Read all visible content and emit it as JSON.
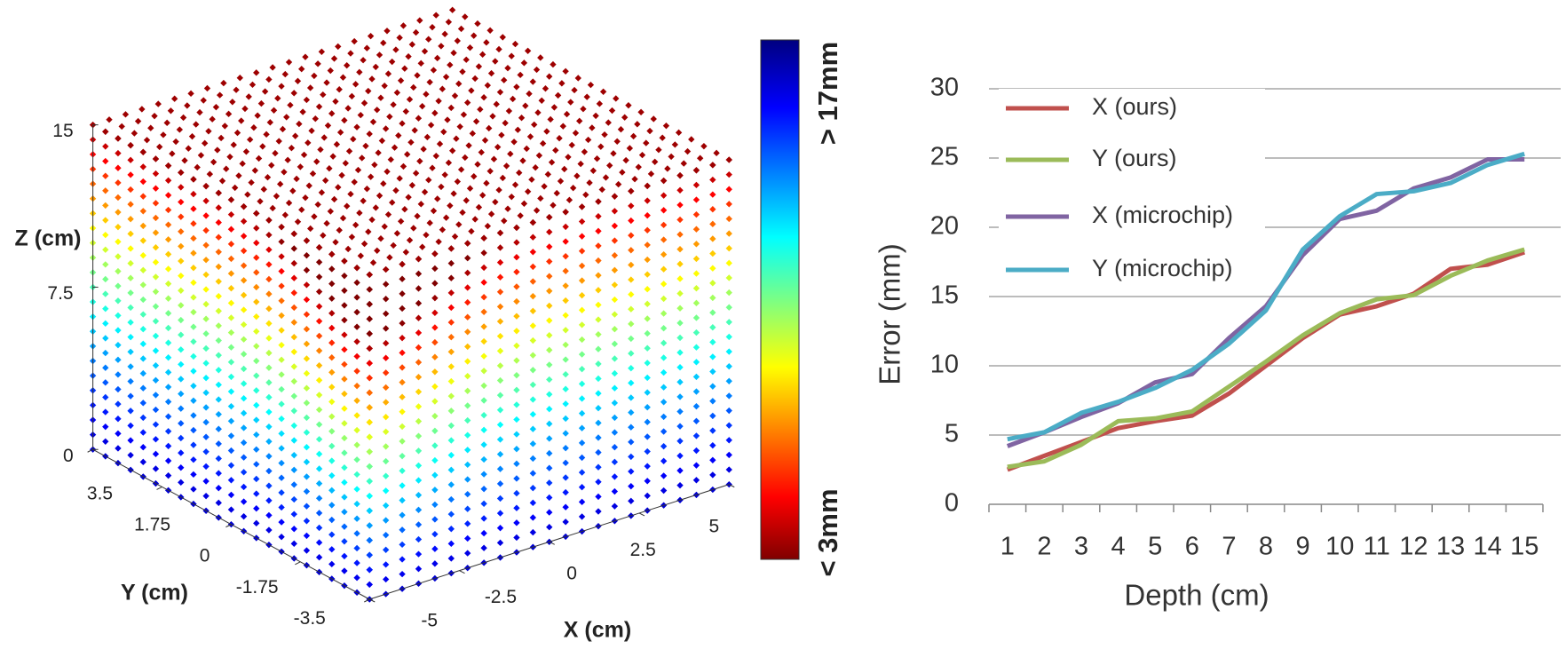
{
  "chart_data": [
    {
      "type": "scatter3d",
      "xlabel": "X (cm)",
      "ylabel": "Y (cm)",
      "zlabel": "Z (cm)",
      "xlim": [
        -5,
        5
      ],
      "ylim": [
        -3.5,
        3.5
      ],
      "zlim": [
        0,
        15
      ],
      "xticks": [
        -5,
        -2.5,
        0,
        2.5,
        5
      ],
      "yticks": [
        -3.5,
        -1.75,
        0,
        1.75,
        3.5
      ],
      "zticks": [
        0,
        7.5,
        15
      ],
      "colorbar": {
        "max_label": "> 17mm",
        "min_label": "< 3mm"
      }
    },
    {
      "type": "line",
      "xlabel": "Depth (cm)",
      "ylabel": "Error (mm)",
      "categories": [
        "1",
        "2",
        "3",
        "4",
        "5",
        "6",
        "7",
        "8",
        "9",
        "10",
        "11",
        "12",
        "13",
        "14",
        "15"
      ],
      "ylim": [
        0,
        30
      ],
      "yticks": [
        0,
        5,
        10,
        15,
        20,
        25,
        30
      ],
      "grid": true,
      "series": [
        {
          "name": "X (ours)",
          "color": "#c0504d",
          "values": [
            2.5,
            3.5,
            4.5,
            5.5,
            6,
            6.4,
            8,
            10,
            12,
            13.7,
            14.3,
            15.2,
            17,
            17.3,
            18.2
          ]
        },
        {
          "name": "Y (ours)",
          "color": "#9bbb59",
          "values": [
            2.7,
            3.1,
            4.3,
            6,
            6.2,
            6.7,
            8.5,
            10.3,
            12.2,
            13.8,
            14.8,
            15.1,
            16.5,
            17.6,
            18.4
          ]
        },
        {
          "name": "X (microchip)",
          "color": "#8064a2",
          "values": [
            4.2,
            5.2,
            6.3,
            7.3,
            8.8,
            9.4,
            12,
            14.3,
            18,
            20.6,
            21.2,
            22.8,
            23.6,
            24.9,
            24.9
          ]
        },
        {
          "name": "Y (microchip)",
          "color": "#4bacc6",
          "values": [
            4.7,
            5.2,
            6.6,
            7.4,
            8.4,
            9.7,
            11.6,
            14,
            18.4,
            20.8,
            22.4,
            22.6,
            23.2,
            24.5,
            25.3
          ]
        }
      ]
    }
  ]
}
